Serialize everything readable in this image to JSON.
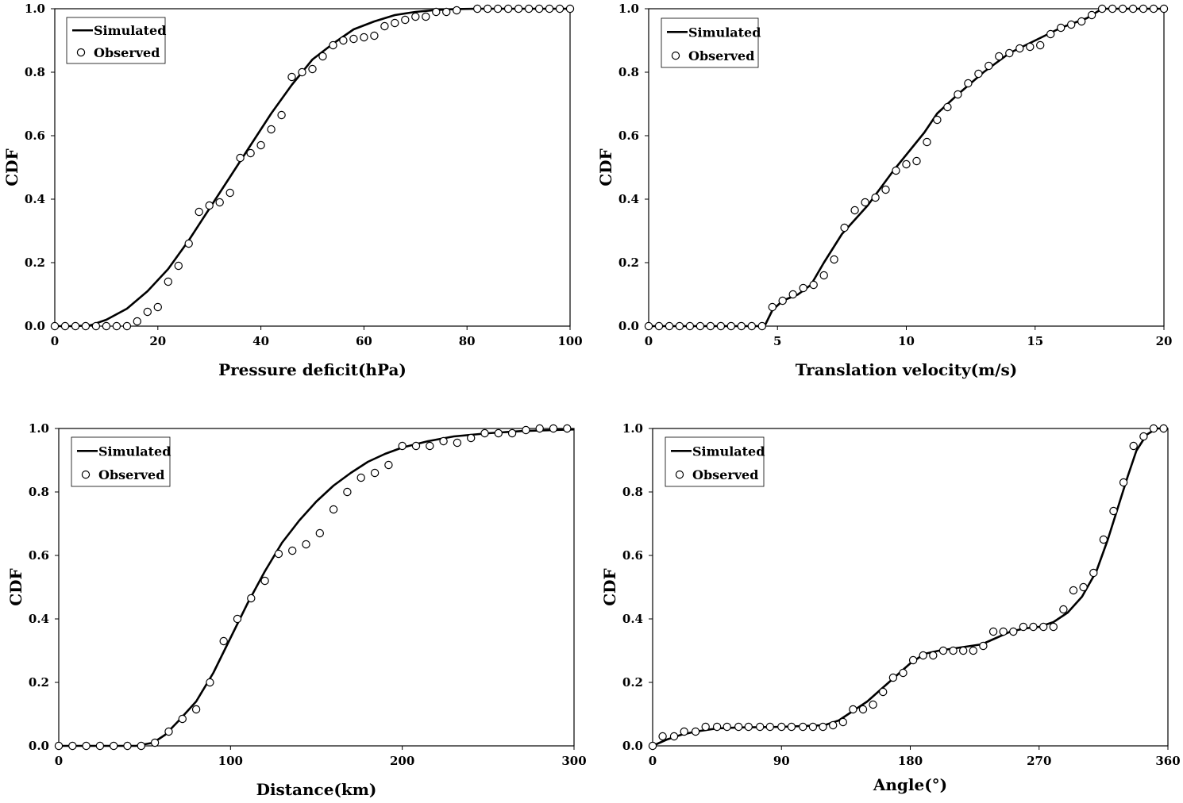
{
  "chart_data": [
    {
      "type": "line",
      "xlabel": "Pressure deficit(hPa)",
      "ylabel": "CDF",
      "xlim": [
        0,
        100
      ],
      "ylim": [
        0,
        1
      ],
      "xticks": [
        "0",
        "20",
        "40",
        "60",
        "80",
        "100"
      ],
      "yticks": [
        "0.0",
        "0.2",
        "0.4",
        "0.6",
        "0.8",
        "1.0"
      ],
      "legend": "top-left",
      "grid": false,
      "series": [
        {
          "name": "Simulated",
          "style": "line",
          "x": [
            0,
            4,
            7,
            10,
            14,
            18,
            22,
            26,
            30,
            34,
            38,
            42,
            46,
            50,
            54,
            58,
            62,
            66,
            70,
            74,
            78,
            82,
            100
          ],
          "y": [
            0,
            0,
            0.003,
            0.02,
            0.055,
            0.11,
            0.18,
            0.27,
            0.37,
            0.47,
            0.57,
            0.67,
            0.76,
            0.84,
            0.89,
            0.935,
            0.96,
            0.98,
            0.99,
            0.996,
            0.999,
            1,
            1
          ]
        },
        {
          "name": "Observed",
          "style": "marker",
          "x": [
            0,
            2,
            4,
            6,
            8,
            10,
            12,
            14,
            16,
            18,
            20,
            22,
            24,
            26,
            28,
            30,
            32,
            34,
            36,
            38,
            40,
            42,
            44,
            46,
            48,
            50,
            52,
            54,
            56,
            58,
            60,
            62,
            64,
            66,
            68,
            70,
            72,
            74,
            76,
            78,
            82,
            84,
            86,
            88,
            90,
            92,
            94,
            96,
            98,
            100
          ],
          "y": [
            0,
            0,
            0,
            0,
            0,
            0,
            0,
            0,
            0.015,
            0.045,
            0.06,
            0.14,
            0.19,
            0.26,
            0.36,
            0.38,
            0.39,
            0.42,
            0.53,
            0.545,
            0.57,
            0.62,
            0.665,
            0.785,
            0.8,
            0.81,
            0.85,
            0.885,
            0.9,
            0.905,
            0.91,
            0.915,
            0.945,
            0.955,
            0.965,
            0.975,
            0.975,
            0.99,
            0.99,
            0.995,
            1,
            1,
            1,
            1,
            1,
            1,
            1,
            1,
            1,
            1
          ]
        }
      ]
    },
    {
      "type": "line",
      "xlabel": "Translation velocity(m/s)",
      "ylabel": "CDF",
      "xlim": [
        0,
        20
      ],
      "ylim": [
        0,
        1
      ],
      "xticks": [
        "0",
        "5",
        "10",
        "15",
        "20"
      ],
      "yticks": [
        "0.0",
        "0.2",
        "0.4",
        "0.6",
        "0.8",
        "1.0"
      ],
      "legend": "top-left",
      "grid": false,
      "series": [
        {
          "name": "Simulated",
          "style": "line",
          "x": [
            0,
            4.5,
            4.8,
            5.2,
            5.8,
            6.3,
            6.8,
            7.5,
            8.5,
            9.5,
            10.2,
            10.7,
            11.2,
            12.0,
            13.0,
            14.0,
            15.0,
            16.0,
            17.0,
            17.6,
            20
          ],
          "y": [
            0,
            0,
            0.05,
            0.08,
            0.1,
            0.13,
            0.2,
            0.29,
            0.38,
            0.49,
            0.56,
            0.61,
            0.67,
            0.73,
            0.8,
            0.86,
            0.9,
            0.94,
            0.97,
            1,
            1
          ]
        },
        {
          "name": "Observed",
          "style": "marker",
          "x": [
            0,
            0.4,
            0.8,
            1.2,
            1.6,
            2.0,
            2.4,
            2.8,
            3.2,
            3.6,
            4.0,
            4.4,
            4.8,
            5.2,
            5.6,
            6.0,
            6.4,
            6.8,
            7.2,
            7.6,
            8.0,
            8.4,
            8.8,
            9.2,
            9.6,
            10.0,
            10.4,
            10.8,
            11.2,
            11.6,
            12.0,
            12.4,
            12.8,
            13.2,
            13.6,
            14.0,
            14.4,
            14.8,
            15.2,
            15.6,
            16.0,
            16.4,
            16.8,
            17.2,
            17.6,
            18.0,
            18.4,
            18.8,
            19.2,
            19.6,
            20.0
          ],
          "y": [
            0,
            0,
            0,
            0,
            0,
            0,
            0,
            0,
            0,
            0,
            0,
            0,
            0.06,
            0.08,
            0.1,
            0.12,
            0.13,
            0.16,
            0.21,
            0.31,
            0.365,
            0.39,
            0.405,
            0.43,
            0.49,
            0.51,
            0.52,
            0.58,
            0.65,
            0.69,
            0.73,
            0.765,
            0.795,
            0.82,
            0.85,
            0.86,
            0.875,
            0.88,
            0.885,
            0.92,
            0.94,
            0.95,
            0.96,
            0.98,
            1,
            1,
            1,
            1,
            1,
            1,
            1
          ]
        }
      ]
    },
    {
      "type": "line",
      "xlabel": "Distance(km)",
      "ylabel": "CDF",
      "xlim": [
        0,
        300
      ],
      "ylim": [
        0,
        1
      ],
      "xticks": [
        "0",
        "100",
        "200",
        "300"
      ],
      "yticks": [
        "0.0",
        "0.2",
        "0.4",
        "0.6",
        "0.8",
        "1.0"
      ],
      "legend": "top-left",
      "grid": false,
      "series": [
        {
          "name": "Simulated",
          "style": "line",
          "x": [
            0,
            45,
            55,
            62,
            70,
            80,
            90,
            100,
            110,
            120,
            130,
            140,
            150,
            160,
            170,
            180,
            190,
            200,
            215,
            230,
            250,
            270,
            300
          ],
          "y": [
            0,
            0,
            0.01,
            0.035,
            0.08,
            0.14,
            0.23,
            0.34,
            0.45,
            0.55,
            0.64,
            0.71,
            0.77,
            0.82,
            0.86,
            0.895,
            0.92,
            0.94,
            0.96,
            0.975,
            0.985,
            0.992,
            0.997
          ]
        },
        {
          "name": "Observed",
          "style": "marker",
          "x": [
            0,
            8,
            16,
            24,
            32,
            40,
            48,
            56,
            64,
            72,
            80,
            88,
            96,
            104,
            112,
            120,
            128,
            136,
            144,
            152,
            160,
            168,
            176,
            184,
            192,
            200,
            208,
            216,
            224,
            232,
            240,
            248,
            256,
            264,
            272,
            280,
            288,
            296
          ],
          "y": [
            0,
            0,
            0,
            0,
            0,
            0,
            0,
            0.01,
            0.045,
            0.085,
            0.115,
            0.2,
            0.33,
            0.4,
            0.465,
            0.52,
            0.605,
            0.615,
            0.635,
            0.67,
            0.745,
            0.8,
            0.845,
            0.86,
            0.885,
            0.945,
            0.945,
            0.945,
            0.96,
            0.955,
            0.97,
            0.985,
            0.985,
            0.985,
            0.995,
            1,
            1,
            1
          ]
        }
      ]
    },
    {
      "type": "line",
      "xlabel": "Angle(°)",
      "ylabel": "CDF",
      "xlim": [
        0,
        360
      ],
      "ylim": [
        0,
        1
      ],
      "xticks": [
        "0",
        "90",
        "180",
        "270",
        "360"
      ],
      "yticks": [
        "0.0",
        "0.2",
        "0.4",
        "0.6",
        "0.8",
        "1.0"
      ],
      "legend": "top-left",
      "grid": false,
      "series": [
        {
          "name": "Simulated",
          "style": "line",
          "x": [
            0,
            10,
            20,
            30,
            45,
            60,
            90,
            120,
            130,
            140,
            150,
            160,
            170,
            180,
            190,
            200,
            215,
            230,
            240,
            250,
            260,
            270,
            280,
            290,
            300,
            310,
            318,
            325,
            332,
            338,
            345,
            352,
            360
          ],
          "y": [
            0,
            0.02,
            0.035,
            0.045,
            0.055,
            0.058,
            0.06,
            0.065,
            0.08,
            0.11,
            0.14,
            0.18,
            0.22,
            0.26,
            0.29,
            0.3,
            0.31,
            0.32,
            0.34,
            0.36,
            0.37,
            0.375,
            0.39,
            0.42,
            0.47,
            0.55,
            0.65,
            0.75,
            0.85,
            0.93,
            0.98,
            1,
            1
          ]
        },
        {
          "name": "Observed",
          "style": "marker",
          "x": [
            0,
            7,
            15,
            22,
            30,
            37,
            45,
            52,
            60,
            67,
            75,
            82,
            90,
            97,
            105,
            112,
            119,
            126,
            133,
            140,
            147,
            154,
            161,
            168,
            175,
            182,
            189,
            196,
            203,
            210,
            217,
            224,
            231,
            238,
            245,
            252,
            259,
            266,
            273,
            280,
            287,
            294,
            301,
            308,
            315,
            322,
            329,
            336,
            343,
            350,
            357
          ],
          "y": [
            0,
            0.03,
            0.03,
            0.045,
            0.045,
            0.06,
            0.06,
            0.06,
            0.06,
            0.06,
            0.06,
            0.06,
            0.06,
            0.06,
            0.06,
            0.06,
            0.06,
            0.065,
            0.075,
            0.115,
            0.115,
            0.13,
            0.17,
            0.215,
            0.23,
            0.27,
            0.285,
            0.285,
            0.3,
            0.3,
            0.3,
            0.3,
            0.315,
            0.36,
            0.36,
            0.36,
            0.375,
            0.375,
            0.375,
            0.375,
            0.43,
            0.49,
            0.5,
            0.545,
            0.65,
            0.74,
            0.83,
            0.945,
            0.975,
            1,
            1
          ]
        }
      ]
    }
  ]
}
